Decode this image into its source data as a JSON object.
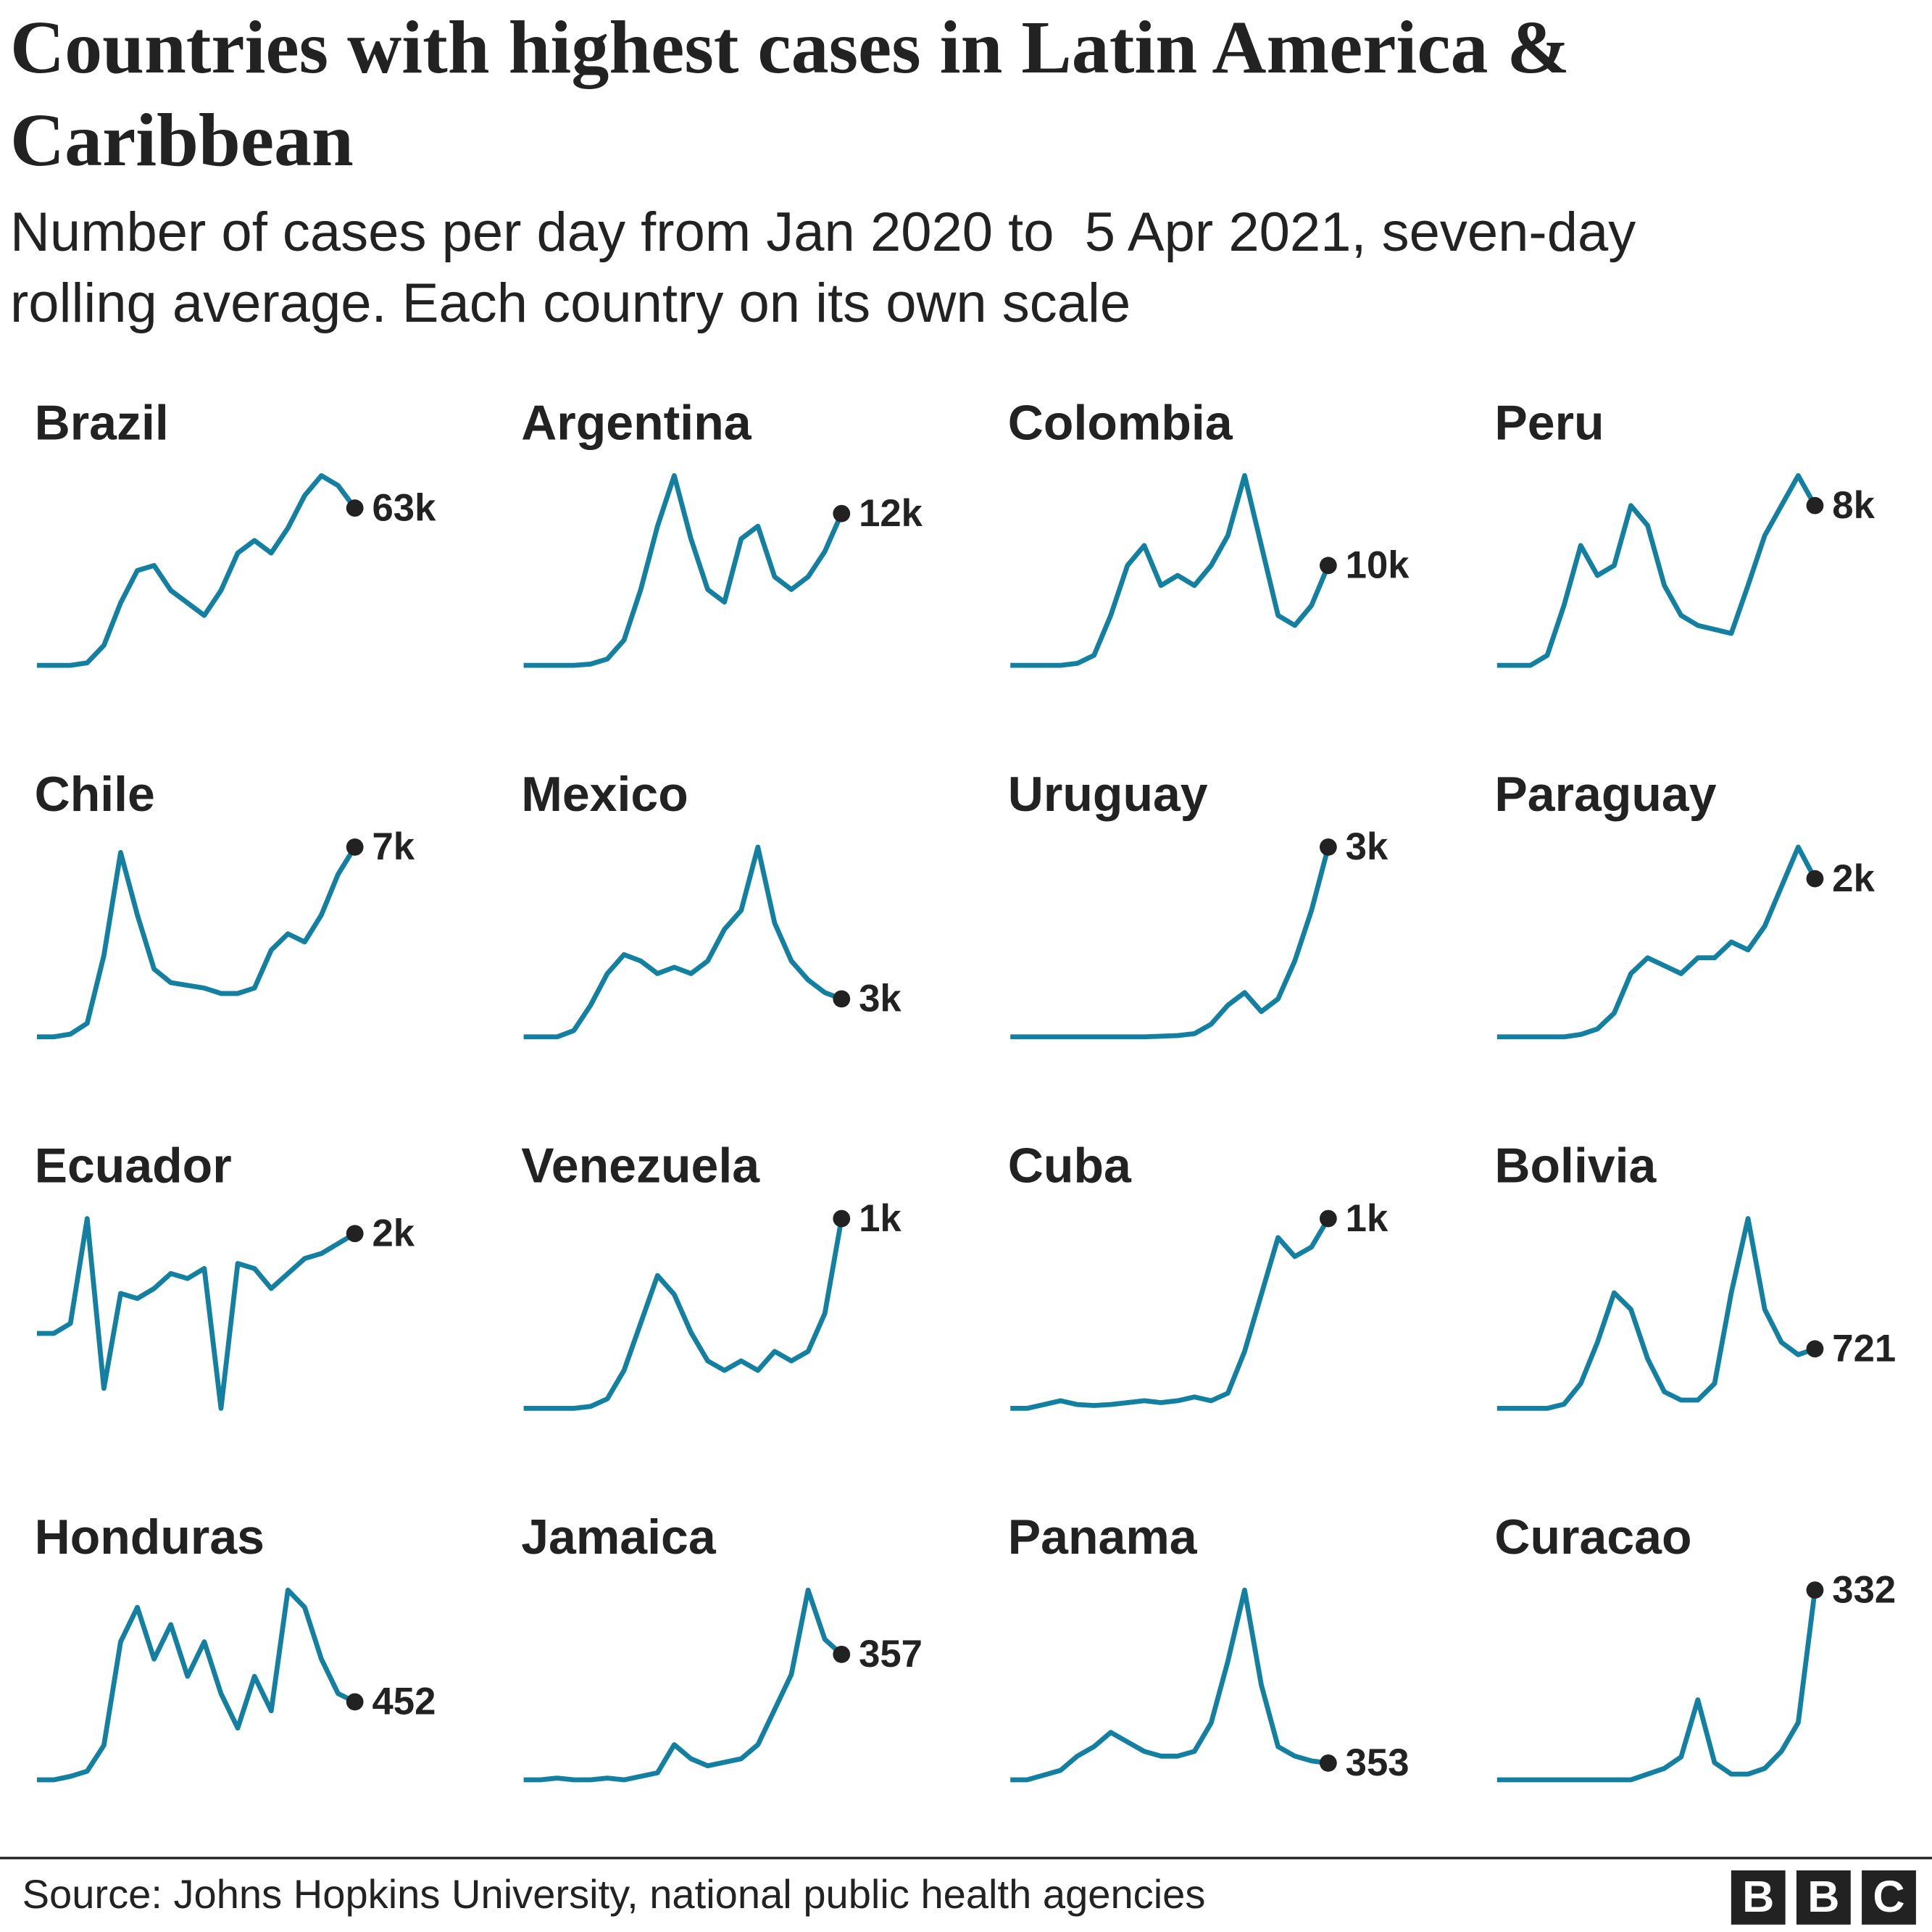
{
  "title": "Countries with highest cases in Latin America & Caribbean",
  "subtitle": "Number of cases per day from Jan 2020 to  5 Apr 2021, seven-day rolling average. Each country on its own scale",
  "source": "Source: Johns Hopkins University, national public health agencies",
  "logo": [
    "B",
    "B",
    "C"
  ],
  "chart_data": [
    {
      "type": "line",
      "title": "Brazil",
      "color": "#1380a1",
      "values": [
        0,
        0,
        0,
        1000,
        8000,
        25000,
        38000,
        40000,
        30000,
        25000,
        20000,
        30000,
        45000,
        50000,
        45000,
        55000,
        68000,
        76000,
        72000,
        63000
      ],
      "value_labels": [
        null,
        null,
        null,
        null,
        null,
        null,
        null,
        null,
        null,
        null,
        null,
        null,
        null,
        null,
        null,
        null,
        null,
        null,
        null,
        "63k"
      ]
    },
    {
      "type": "line",
      "title": "Argentina",
      "color": "#1380a1",
      "values": [
        0,
        0,
        0,
        0,
        100,
        500,
        2000,
        6000,
        11000,
        15000,
        10000,
        6000,
        5000,
        10000,
        11000,
        7000,
        6000,
        7000,
        9000,
        12000
      ],
      "value_labels": [
        null,
        null,
        null,
        null,
        null,
        null,
        null,
        null,
        null,
        null,
        null,
        null,
        null,
        null,
        null,
        null,
        null,
        null,
        null,
        "12k"
      ]
    },
    {
      "type": "line",
      "title": "Colombia",
      "color": "#1380a1",
      "values": [
        0,
        0,
        0,
        0,
        200,
        1000,
        5000,
        10000,
        12000,
        8000,
        9000,
        8000,
        10000,
        13000,
        19000,
        12000,
        5000,
        4000,
        6000,
        10000
      ],
      "value_labels": [
        null,
        null,
        null,
        null,
        null,
        null,
        null,
        null,
        null,
        null,
        null,
        null,
        null,
        null,
        null,
        null,
        null,
        null,
        null,
        "10k"
      ]
    },
    {
      "type": "line",
      "title": "Peru",
      "color": "#1380a1",
      "values": [
        0,
        0,
        0,
        500,
        3000,
        6000,
        4500,
        5000,
        8000,
        7000,
        4000,
        2500,
        2000,
        1800,
        1600,
        4000,
        6500,
        8000,
        9500,
        8000
      ],
      "value_labels": [
        null,
        null,
        null,
        null,
        null,
        null,
        null,
        null,
        null,
        null,
        null,
        null,
        null,
        null,
        null,
        null,
        null,
        null,
        null,
        "8k"
      ]
    },
    {
      "type": "line",
      "title": "Chile",
      "color": "#1380a1",
      "values": [
        0,
        0,
        100,
        500,
        3000,
        6800,
        4500,
        2500,
        2000,
        1900,
        1800,
        1600,
        1600,
        1800,
        3200,
        3800,
        3500,
        4500,
        6000,
        7000
      ],
      "value_labels": [
        null,
        null,
        null,
        null,
        null,
        null,
        null,
        null,
        null,
        null,
        null,
        null,
        null,
        null,
        null,
        null,
        null,
        null,
        null,
        "7k"
      ]
    },
    {
      "type": "line",
      "title": "Mexico",
      "color": "#1380a1",
      "values": [
        0,
        0,
        0,
        500,
        2500,
        5000,
        6500,
        6000,
        5000,
        5500,
        5000,
        6000,
        8500,
        10000,
        15000,
        9000,
        6000,
        4500,
        3500,
        3000
      ],
      "value_labels": [
        null,
        null,
        null,
        null,
        null,
        null,
        null,
        null,
        null,
        null,
        null,
        null,
        null,
        null,
        null,
        null,
        null,
        null,
        null,
        "3k"
      ]
    },
    {
      "type": "line",
      "title": "Uruguay",
      "color": "#1380a1",
      "values": [
        0,
        0,
        0,
        0,
        0,
        0,
        0,
        0,
        0,
        10,
        20,
        50,
        200,
        500,
        700,
        400,
        600,
        1200,
        2000,
        3000
      ],
      "value_labels": [
        null,
        null,
        null,
        null,
        null,
        null,
        null,
        null,
        null,
        null,
        null,
        null,
        null,
        null,
        null,
        null,
        null,
        null,
        null,
        "3k"
      ]
    },
    {
      "type": "line",
      "title": "Paraguay",
      "color": "#1380a1",
      "values": [
        0,
        0,
        0,
        0,
        0,
        30,
        100,
        300,
        800,
        1000,
        900,
        800,
        1000,
        1000,
        1200,
        1100,
        1400,
        1900,
        2400,
        2000
      ],
      "value_labels": [
        null,
        null,
        null,
        null,
        null,
        null,
        null,
        null,
        null,
        null,
        null,
        null,
        null,
        null,
        null,
        null,
        null,
        null,
        null,
        "2k"
      ]
    },
    {
      "type": "line",
      "title": "Ecuador",
      "color": "#1380a1",
      "values": [
        0,
        0,
        200,
        2300,
        -1100,
        800,
        700,
        900,
        1200,
        1100,
        1300,
        -1500,
        1400,
        1300,
        900,
        1200,
        1500,
        1600,
        1800,
        2000
      ],
      "value_labels": [
        null,
        null,
        null,
        null,
        null,
        null,
        null,
        null,
        null,
        null,
        null,
        null,
        null,
        null,
        null,
        null,
        null,
        null,
        null,
        "2k"
      ]
    },
    {
      "type": "line",
      "title": "Venezuela",
      "color": "#1380a1",
      "values": [
        0,
        0,
        0,
        0,
        10,
        50,
        200,
        450,
        700,
        600,
        400,
        250,
        200,
        250,
        200,
        300,
        250,
        300,
        500,
        1000
      ],
      "value_labels": [
        null,
        null,
        null,
        null,
        null,
        null,
        null,
        null,
        null,
        null,
        null,
        null,
        null,
        null,
        null,
        null,
        null,
        null,
        null,
        "1k"
      ]
    },
    {
      "type": "line",
      "title": "Cuba",
      "color": "#1380a1",
      "values": [
        0,
        0,
        20,
        40,
        20,
        15,
        20,
        30,
        40,
        30,
        40,
        60,
        40,
        80,
        300,
        600,
        900,
        800,
        850,
        1000
      ],
      "value_labels": [
        null,
        null,
        null,
        null,
        null,
        null,
        null,
        null,
        null,
        null,
        null,
        null,
        null,
        null,
        null,
        null,
        null,
        null,
        null,
        "1k"
      ]
    },
    {
      "type": "line",
      "title": "Bolivia",
      "color": "#1380a1",
      "values": [
        0,
        0,
        0,
        0,
        50,
        300,
        800,
        1400,
        1200,
        600,
        200,
        100,
        100,
        300,
        1400,
        2300,
        1200,
        800,
        650,
        721
      ],
      "value_labels": [
        null,
        null,
        null,
        null,
        null,
        null,
        null,
        null,
        null,
        null,
        null,
        null,
        null,
        null,
        null,
        null,
        null,
        null,
        null,
        "721"
      ]
    },
    {
      "type": "line",
      "title": "Honduras",
      "color": "#1380a1",
      "values": [
        0,
        0,
        20,
        50,
        200,
        800,
        1000,
        700,
        900,
        600,
        800,
        500,
        300,
        600,
        400,
        1100,
        1000,
        700,
        500,
        452
      ],
      "value_labels": [
        null,
        null,
        null,
        null,
        null,
        null,
        null,
        null,
        null,
        null,
        null,
        null,
        null,
        null,
        null,
        null,
        null,
        null,
        null,
        "452"
      ]
    },
    {
      "type": "line",
      "title": "Jamaica",
      "color": "#1380a1",
      "values": [
        0,
        0,
        5,
        0,
        0,
        5,
        0,
        10,
        20,
        100,
        60,
        40,
        50,
        60,
        100,
        200,
        300,
        540,
        400,
        357
      ],
      "value_labels": [
        null,
        null,
        null,
        null,
        null,
        null,
        null,
        null,
        null,
        null,
        null,
        null,
        null,
        null,
        null,
        null,
        null,
        null,
        null,
        "357"
      ]
    },
    {
      "type": "line",
      "title": "Panama",
      "color": "#1380a1",
      "values": [
        0,
        0,
        100,
        200,
        500,
        700,
        1000,
        800,
        600,
        500,
        500,
        600,
        1200,
        2500,
        4000,
        2000,
        700,
        500,
        400,
        353
      ],
      "value_labels": [
        null,
        null,
        null,
        null,
        null,
        null,
        null,
        null,
        null,
        null,
        null,
        null,
        null,
        null,
        null,
        null,
        null,
        null,
        null,
        "353"
      ]
    },
    {
      "type": "line",
      "title": "Curacao",
      "color": "#1380a1",
      "values": [
        0,
        0,
        0,
        0,
        0,
        0,
        0,
        0,
        0,
        10,
        20,
        40,
        140,
        30,
        10,
        10,
        20,
        50,
        100,
        332
      ],
      "value_labels": [
        null,
        null,
        null,
        null,
        null,
        null,
        null,
        null,
        null,
        null,
        null,
        null,
        null,
        null,
        null,
        null,
        null,
        null,
        null,
        "332"
      ]
    }
  ]
}
